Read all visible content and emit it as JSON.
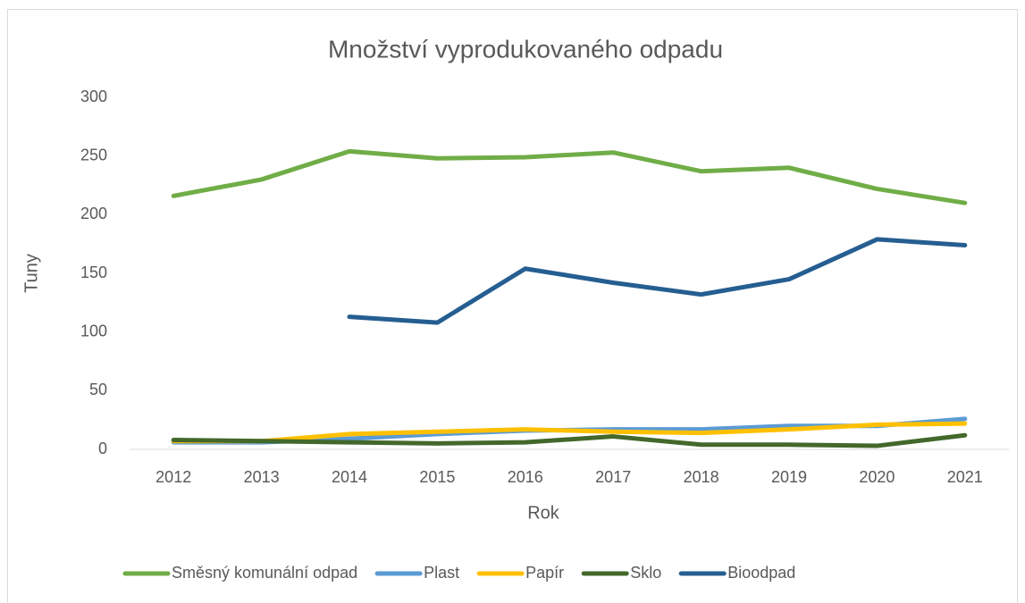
{
  "chart_data": {
    "type": "line",
    "title": "Množství vyprodukovaného odpadu",
    "x_label": "Rok",
    "y_label": "Tuny",
    "categories": [
      "2012",
      "2013",
      "2014",
      "2015",
      "2016",
      "2017",
      "2018",
      "2019",
      "2020",
      "2021"
    ],
    "series": [
      {
        "name": "Směsný komunální odpad",
        "color": "#70ad47",
        "values": [
          216,
          230,
          254,
          248,
          249,
          253,
          237,
          240,
          222,
          210
        ]
      },
      {
        "name": "Plast",
        "color": "#5b9bd5",
        "values": [
          6,
          6,
          9,
          13,
          16,
          17,
          17,
          20,
          20,
          26
        ]
      },
      {
        "name": "Papír",
        "color": "#ffc000",
        "values": [
          7,
          7,
          13,
          15,
          17,
          15,
          14,
          17,
          21,
          22
        ]
      },
      {
        "name": "Sklo",
        "color": "#43682b",
        "values": [
          8,
          7,
          6,
          5,
          6,
          11,
          4,
          4,
          3,
          12
        ]
      },
      {
        "name": "Bioodpad",
        "color": "#255e91",
        "values": [
          null,
          null,
          113,
          108,
          154,
          142,
          132,
          145,
          179,
          174
        ]
      }
    ],
    "ylim": [
      0,
      300
    ],
    "yticks": [
      0,
      50,
      100,
      150,
      200,
      250,
      300
    ],
    "grid": false,
    "legend": "bottom"
  }
}
